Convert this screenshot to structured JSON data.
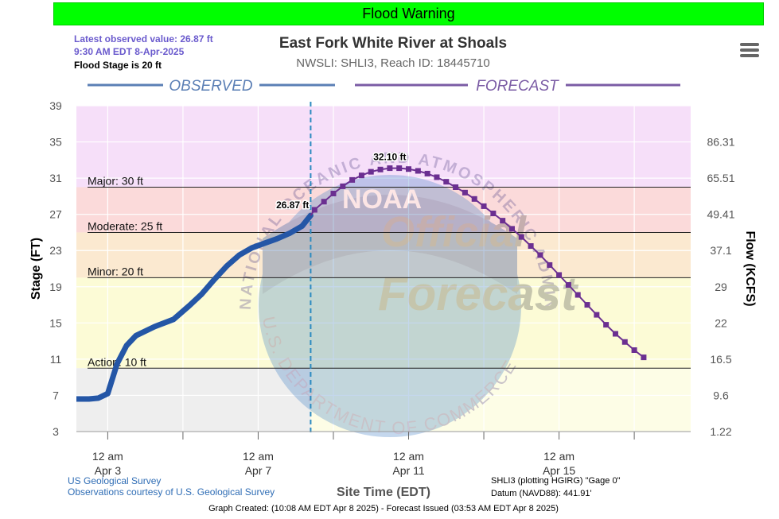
{
  "banner": {
    "label": "Flood Warning"
  },
  "header": {
    "title": "East Fork White River at Shoals",
    "subtitle": "NWSLI: SHLI3, Reach ID: 18445710",
    "latest_line1": "Latest observed value: 26.87 ft",
    "latest_line2": "9:30 AM EDT 8-Apr-2025",
    "flood_stage": "Flood Stage is 20 ft"
  },
  "sections": {
    "observed": "OBSERVED",
    "forecast": "FORECAST"
  },
  "footer": {
    "source1": "US Geological Survey",
    "source2": "Observations courtesy of U.S. Geological Survey",
    "plotting": "SHLI3 (plotting HGIRG) \"Gage 0\"",
    "datum": "Datum (NAVD88): 441.91'",
    "created": "Graph Created: (10:08 AM EDT Apr 8 2025) - Forecast Issued (03:53 AM EDT Apr 8 2025)"
  },
  "watermark": {
    "ring_text": "NATIONAL OCEANIC AND ATMOSPHERIC ADMINISTRATION",
    "bottom_text": "U.S. DEPARTMENT OF COMMERCE",
    "stamp1": "Official",
    "stamp2": "Forecast",
    "noaa": "NOAA"
  },
  "colors": {
    "observed": "#2456a6",
    "forecast": "#6b2f91",
    "major": "#fbdada",
    "moderate": "#fbe9d0",
    "minor": "#fcfbd6",
    "action": "#fdfde6",
    "above_major": "#f6dff9",
    "below_action": "#eeeeee"
  },
  "chart_data": {
    "type": "line",
    "title": "East Fork White River at Shoals",
    "xlabel": "Site Time (EDT)",
    "ylabel": "Stage (FT)",
    "y2label": "Flow (KCFS)",
    "ylim": [
      3,
      39
    ],
    "xlim": [
      "2025-04-02 04:00",
      "2025-04-18 12:00"
    ],
    "y_ticks": [
      "3",
      "7",
      "11",
      "15",
      "19",
      "23",
      "27",
      "31",
      "35",
      "39"
    ],
    "flow_ticks": [
      {
        "stage": 35,
        "label": "86.31"
      },
      {
        "stage": 31,
        "label": "65.51"
      },
      {
        "stage": 27,
        "label": "49.41"
      },
      {
        "stage": 23,
        "label": "37.1"
      },
      {
        "stage": 19,
        "label": "29"
      },
      {
        "stage": 15,
        "label": "22"
      },
      {
        "stage": 11,
        "label": "16.5"
      },
      {
        "stage": 7,
        "label": "9.6"
      },
      {
        "stage": 3,
        "label": "1.22"
      }
    ],
    "x_ticks": [
      {
        "date": "2025-04-03 00:00",
        "line1": "12 am",
        "line2": "Apr 3"
      },
      {
        "date": "2025-04-07 00:00",
        "line1": "12 am",
        "line2": "Apr 7"
      },
      {
        "date": "2025-04-11 00:00",
        "line1": "12 am",
        "line2": "Apr 11"
      },
      {
        "date": "2025-04-15 00:00",
        "line1": "12 am",
        "line2": "Apr 15"
      }
    ],
    "minor_x_ticks": [
      "2025-04-05 00:00",
      "2025-04-09 00:00",
      "2025-04-13 00:00",
      "2025-04-17 00:00"
    ],
    "grid": true,
    "thresholds": [
      {
        "name": "Major",
        "value": 30,
        "label": "Major: 30 ft"
      },
      {
        "name": "Moderate",
        "value": 25,
        "label": "Moderate: 25 ft"
      },
      {
        "name": "Minor",
        "value": 20,
        "label": "Minor: 20 ft"
      },
      {
        "name": "Action",
        "value": 10,
        "label": "Action: 10 ft"
      }
    ],
    "split_time": "2025-04-08 09:30",
    "series": [
      {
        "name": "OBSERVED",
        "points": [
          [
            "2025-04-02 04:00",
            6.6
          ],
          [
            "2025-04-02 12:00",
            6.6
          ],
          [
            "2025-04-02 18:00",
            6.7
          ],
          [
            "2025-04-03 00:00",
            7.2
          ],
          [
            "2025-04-03 06:00",
            10.5
          ],
          [
            "2025-04-03 12:00",
            12.5
          ],
          [
            "2025-04-03 18:00",
            13.6
          ],
          [
            "2025-04-04 06:00",
            14.6
          ],
          [
            "2025-04-04 18:00",
            15.4
          ],
          [
            "2025-04-05 04:00",
            16.9
          ],
          [
            "2025-04-05 12:00",
            18.2
          ],
          [
            "2025-04-05 20:00",
            19.8
          ],
          [
            "2025-04-06 04:00",
            21.3
          ],
          [
            "2025-04-06 12:00",
            22.5
          ],
          [
            "2025-04-06 20:00",
            23.3
          ],
          [
            "2025-04-07 04:00",
            23.8
          ],
          [
            "2025-04-07 12:00",
            24.3
          ],
          [
            "2025-04-07 20:00",
            24.9
          ],
          [
            "2025-04-08 04:00",
            25.7
          ],
          [
            "2025-04-08 09:30",
            26.87
          ]
        ],
        "annotation": "26.87 ft"
      },
      {
        "name": "FORECAST",
        "points": [
          [
            "2025-04-08 12:00",
            27.5
          ],
          [
            "2025-04-08 18:00",
            28.4
          ],
          [
            "2025-04-09 00:00",
            29.3
          ],
          [
            "2025-04-09 06:00",
            30.1
          ],
          [
            "2025-04-09 12:00",
            30.8
          ],
          [
            "2025-04-09 18:00",
            31.3
          ],
          [
            "2025-04-10 00:00",
            31.7
          ],
          [
            "2025-04-10 06:00",
            31.95
          ],
          [
            "2025-04-10 12:00",
            32.1
          ],
          [
            "2025-04-10 18:00",
            32.1
          ],
          [
            "2025-04-11 00:00",
            32.0
          ],
          [
            "2025-04-11 06:00",
            31.8
          ],
          [
            "2025-04-11 12:00",
            31.5
          ],
          [
            "2025-04-11 18:00",
            31.1
          ],
          [
            "2025-04-12 00:00",
            30.6
          ],
          [
            "2025-04-12 06:00",
            30.0
          ],
          [
            "2025-04-12 12:00",
            29.4
          ],
          [
            "2025-04-12 18:00",
            28.7
          ],
          [
            "2025-04-13 00:00",
            27.9
          ],
          [
            "2025-04-13 06:00",
            27.1
          ],
          [
            "2025-04-13 12:00",
            26.3
          ],
          [
            "2025-04-13 18:00",
            25.4
          ],
          [
            "2025-04-14 00:00",
            24.5
          ],
          [
            "2025-04-14 06:00",
            23.5
          ],
          [
            "2025-04-14 12:00",
            22.5
          ],
          [
            "2025-04-14 18:00",
            21.4
          ],
          [
            "2025-04-15 00:00",
            20.3
          ],
          [
            "2025-04-15 06:00",
            19.2
          ],
          [
            "2025-04-15 12:00",
            18.1
          ],
          [
            "2025-04-15 18:00",
            17.0
          ],
          [
            "2025-04-16 00:00",
            15.9
          ],
          [
            "2025-04-16 06:00",
            14.8
          ],
          [
            "2025-04-16 12:00",
            13.8
          ],
          [
            "2025-04-16 18:00",
            12.9
          ],
          [
            "2025-04-17 00:00",
            12.0
          ],
          [
            "2025-04-17 06:00",
            11.2
          ]
        ],
        "annotation": "32.10 ft"
      }
    ]
  }
}
